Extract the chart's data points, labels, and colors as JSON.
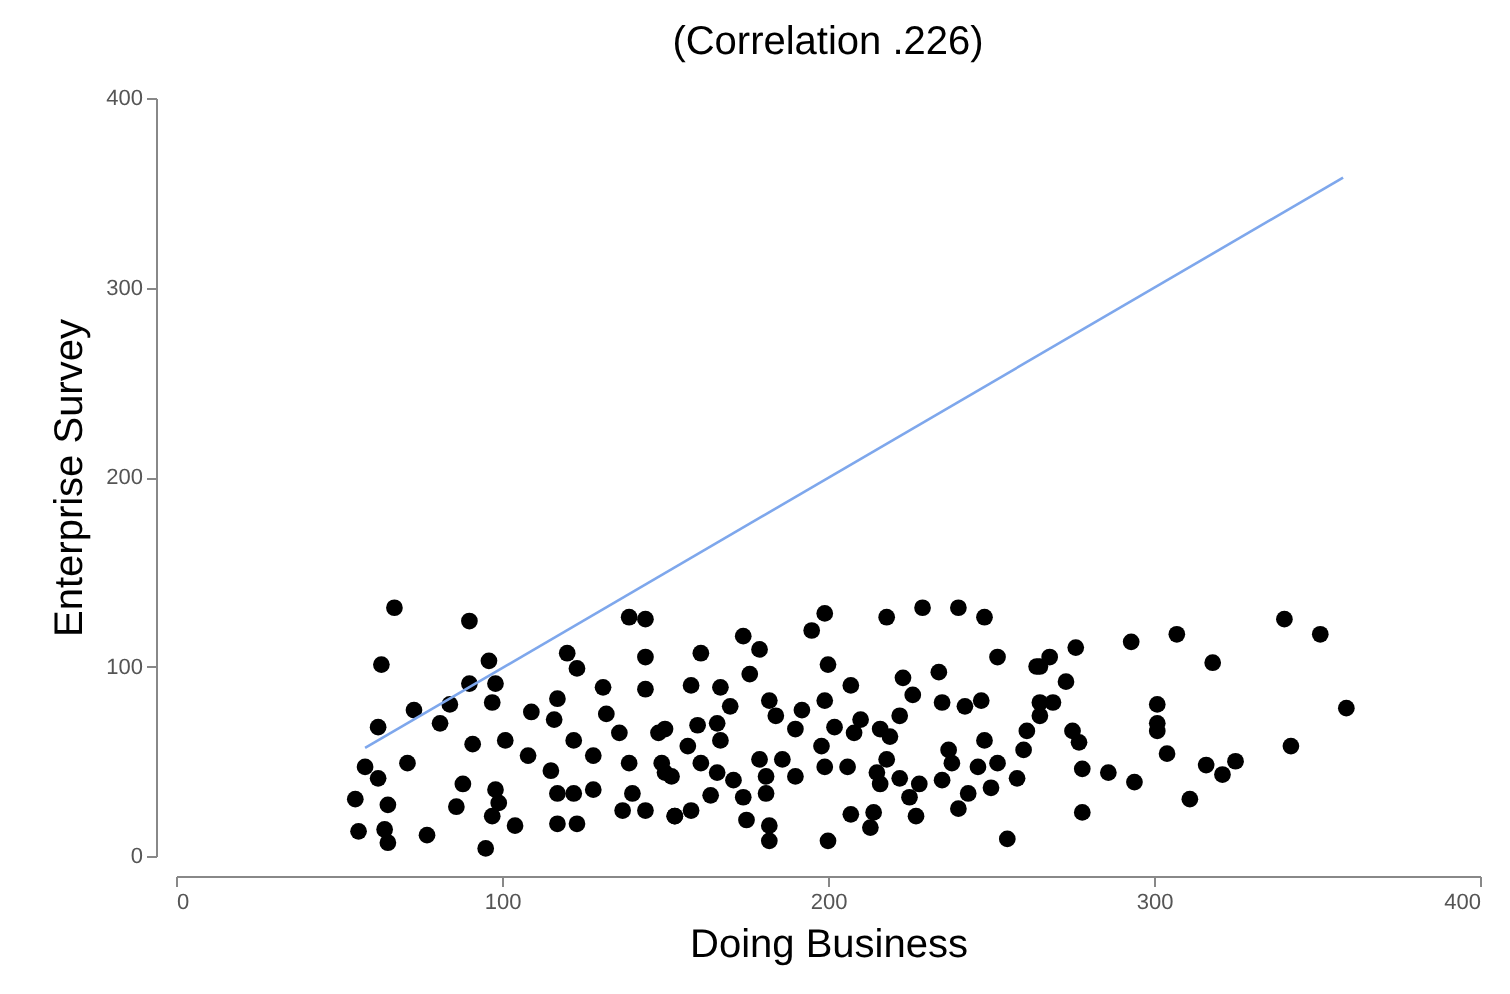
{
  "chart_data": {
    "type": "scatter",
    "title": "(Correlation  .226)",
    "xlabel": "Doing Business",
    "ylabel": "Enterprise Survey",
    "xlim": [
      0,
      400
    ],
    "xticks": [
      0,
      100,
      200,
      300,
      400
    ],
    "ylim": [
      0,
      400
    ],
    "yticks": [
      0,
      100,
      200,
      300,
      400
    ],
    "grid": false,
    "series": [
      {
        "marker": "circle",
        "color": "#000000",
        "x": [
          67,
          90,
          63,
          96,
          90,
          98,
          62,
          73,
          84,
          81,
          97,
          58,
          62,
          71,
          55,
          65,
          56,
          64,
          65,
          77,
          95,
          86,
          88,
          91,
          98,
          99,
          104,
          97,
          101,
          108,
          109,
          120,
          123,
          117,
          116,
          122,
          115,
          117,
          122,
          128,
          117,
          123,
          131,
          132,
          136,
          128,
          139,
          140,
          137,
          144,
          139,
          144,
          144,
          144,
          148,
          150,
          153,
          199,
          195,
          218,
          229,
          240,
          248,
          252,
          264,
          174,
          179,
          161,
          158,
          167,
          176,
          200,
          207,
          223,
          234,
          226,
          235,
          242,
          247,
          170,
          182,
          199,
          192,
          184,
          210,
          222,
          160,
          166,
          167,
          190,
          202,
          208,
          216,
          219,
          237,
          248,
          261,
          260,
          150,
          157,
          149,
          152,
          161,
          166,
          171,
          179,
          186,
          198,
          199,
          206,
          181,
          190,
          215,
          218,
          222,
          228,
          235,
          238,
          246,
          252,
          258,
          250,
          243,
          225,
          216,
          164,
          174,
          181,
          153,
          158,
          175,
          182,
          182,
          200,
          207,
          214,
          213,
          227,
          240,
          255,
          340,
          351,
          359,
          342,
          293,
          307,
          318,
          276,
          268,
          265,
          273,
          265,
          269,
          265,
          275,
          277,
          278,
          278,
          286,
          294,
          301,
          301,
          301,
          304,
          311,
          316,
          321,
          325
        ],
        "values": [
          131,
          124,
          101,
          103,
          91,
          91,
          68,
          77,
          80,
          70,
          81,
          47,
          41,
          49,
          30,
          27,
          13,
          14,
          7,
          11,
          4,
          26,
          38,
          59,
          35,
          28,
          16,
          21,
          61,
          53,
          76,
          107,
          99,
          83,
          72,
          61,
          45,
          33,
          33,
          35,
          17,
          17,
          89,
          75,
          65,
          53,
          49,
          33,
          24,
          24,
          126,
          125,
          105,
          88,
          65,
          44,
          21,
          128,
          119,
          126,
          131,
          131,
          126,
          105,
          100,
          116,
          109,
          107,
          90,
          89,
          96,
          101,
          90,
          94,
          97,
          85,
          81,
          79,
          82,
          79,
          82,
          82,
          77,
          74,
          72,
          74,
          69,
          70,
          61,
          67,
          68,
          65,
          67,
          63,
          56,
          61,
          66,
          56,
          67,
          58,
          49,
          42,
          49,
          44,
          40,
          51,
          51,
          58,
          47,
          47,
          42,
          42,
          44,
          51,
          41,
          38,
          40,
          49,
          47,
          49,
          41,
          36,
          33,
          31,
          38,
          32,
          31,
          33,
          21,
          24,
          19,
          16,
          8,
          8,
          22,
          23,
          15,
          21,
          25,
          9,
          125,
          117,
          78,
          58,
          113,
          117,
          102,
          110,
          105,
          100,
          92,
          81,
          81,
          74,
          66,
          60,
          46,
          23,
          44,
          39,
          80,
          70,
          66,
          54,
          30,
          48,
          43,
          50
        ]
      },
      {
        "type": "line",
        "color": "#7ea7ec",
        "x": [
          58,
          358
        ],
        "values": [
          57,
          358
        ]
      }
    ]
  }
}
